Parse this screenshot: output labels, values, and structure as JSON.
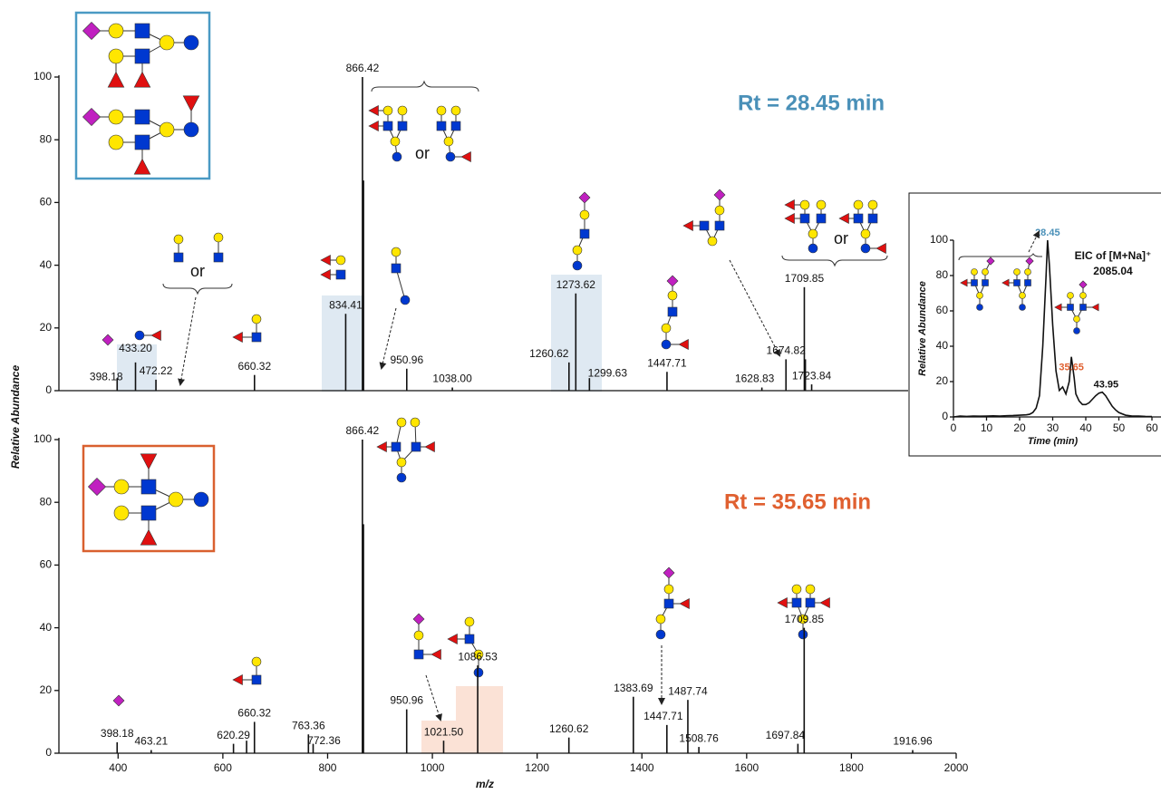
{
  "chart_data": [
    {
      "type": "stick",
      "title": "Rt = 28.45 min",
      "x": [
        398.18,
        433.2,
        472.22,
        660.32,
        834.41,
        866.42,
        868.42,
        950.96,
        1038.0,
        1260.62,
        1273.62,
        1299.63,
        1447.71,
        1628.83,
        1674.82,
        1709.85,
        1711.85,
        1723.84
      ],
      "values": [
        4,
        9,
        3.5,
        5,
        24.5,
        100,
        67,
        7,
        1,
        9,
        31,
        4,
        6,
        1,
        10,
        33,
        10,
        2
      ],
      "peak_labels": [
        "398.18",
        "433.20",
        "472.22",
        "660.32",
        "834.41",
        "866.42",
        null,
        "950.96",
        "1038.00",
        "1260.62",
        "1273.62",
        "1299.63",
        "1447.71",
        "1628.83",
        "1674.82",
        "1709.85",
        null,
        "1723.84"
      ],
      "xlim": [
        287,
        1908
      ],
      "ylim": [
        0,
        100
      ],
      "yticks": [
        0,
        20,
        40,
        60,
        80,
        100
      ],
      "color": "#111111"
    },
    {
      "type": "stick",
      "title": "Rt = 35.65 min",
      "xlabel": "m/z",
      "ylabel": "Relative Abundance",
      "x": [
        398.18,
        463.21,
        620.29,
        645.3,
        660.32,
        763.36,
        772.36,
        866.42,
        868.42,
        950.96,
        1021.5,
        1086.53,
        1260.62,
        1383.69,
        1447.71,
        1487.74,
        1508.76,
        1697.84,
        1709.85,
        1916.96
      ],
      "values": [
        3.5,
        1,
        3,
        4,
        10,
        6,
        3,
        100,
        73,
        14,
        4,
        28,
        5,
        18,
        9,
        17,
        2,
        3,
        40,
        1
      ],
      "peak_labels": [
        "398.18",
        "463.21",
        "620.29",
        null,
        "660.32",
        "763.36",
        "772.36",
        "866.42",
        null,
        "950.96",
        "1021.50",
        "1086.53",
        "1260.62",
        "1383.69",
        "1447.71",
        "1487.74",
        "1508.76",
        "1697.84",
        "1709.85",
        "1916.96"
      ],
      "xlim": [
        287,
        2000
      ],
      "ylim": [
        0,
        100
      ],
      "yticks": [
        0,
        20,
        40,
        60,
        80,
        100
      ],
      "xticks": [
        400,
        600,
        800,
        1000,
        1200,
        1400,
        1600,
        1800,
        2000
      ],
      "color": "#111111"
    },
    {
      "type": "line",
      "title": "EIC of [M+Na]⁺",
      "subtitle": "2085.04",
      "xlabel": "Time (min)",
      "ylabel": "Relative Abundance",
      "x": [
        0,
        2,
        4,
        6,
        8,
        10,
        12,
        14,
        16,
        18,
        20,
        22,
        23,
        24,
        25,
        26,
        27,
        28,
        28.45,
        29,
        30,
        31,
        32,
        33,
        34,
        35,
        35.65,
        36.5,
        37,
        38,
        39,
        40,
        41,
        42,
        43,
        44,
        45,
        46,
        47,
        48,
        49,
        50,
        52,
        54,
        56,
        58,
        60
      ],
      "values": [
        0,
        0.5,
        0.3,
        0.5,
        0.4,
        0.5,
        0.6,
        0.5,
        0.7,
        0.8,
        1,
        1.2,
        1.5,
        2.5,
        5,
        12,
        40,
        80,
        100,
        86,
        52,
        26,
        15,
        17,
        13,
        20,
        34,
        22,
        13,
        9,
        7,
        7,
        8,
        10,
        12,
        13.5,
        14,
        12,
        9,
        6,
        4,
        2.5,
        1,
        0.5,
        0.5,
        0.3,
        0.2
      ],
      "peaks": {
        "x": [
          28.45,
          35.65,
          43.95
        ],
        "values": [
          100,
          34,
          14
        ],
        "labels": [
          "28.45",
          "35.65",
          "43.95"
        ],
        "colors": [
          "#4a90b8",
          "#e06030",
          "#111111"
        ]
      },
      "xlim": [
        0,
        60
      ],
      "ylim": [
        0,
        100
      ],
      "xticks": [
        0,
        10,
        20,
        30,
        40,
        50,
        60
      ],
      "yticks": [
        0,
        20,
        40,
        60,
        80,
        100
      ],
      "color": "#111111"
    }
  ],
  "annotations": [
    "or",
    "or",
    "or"
  ]
}
